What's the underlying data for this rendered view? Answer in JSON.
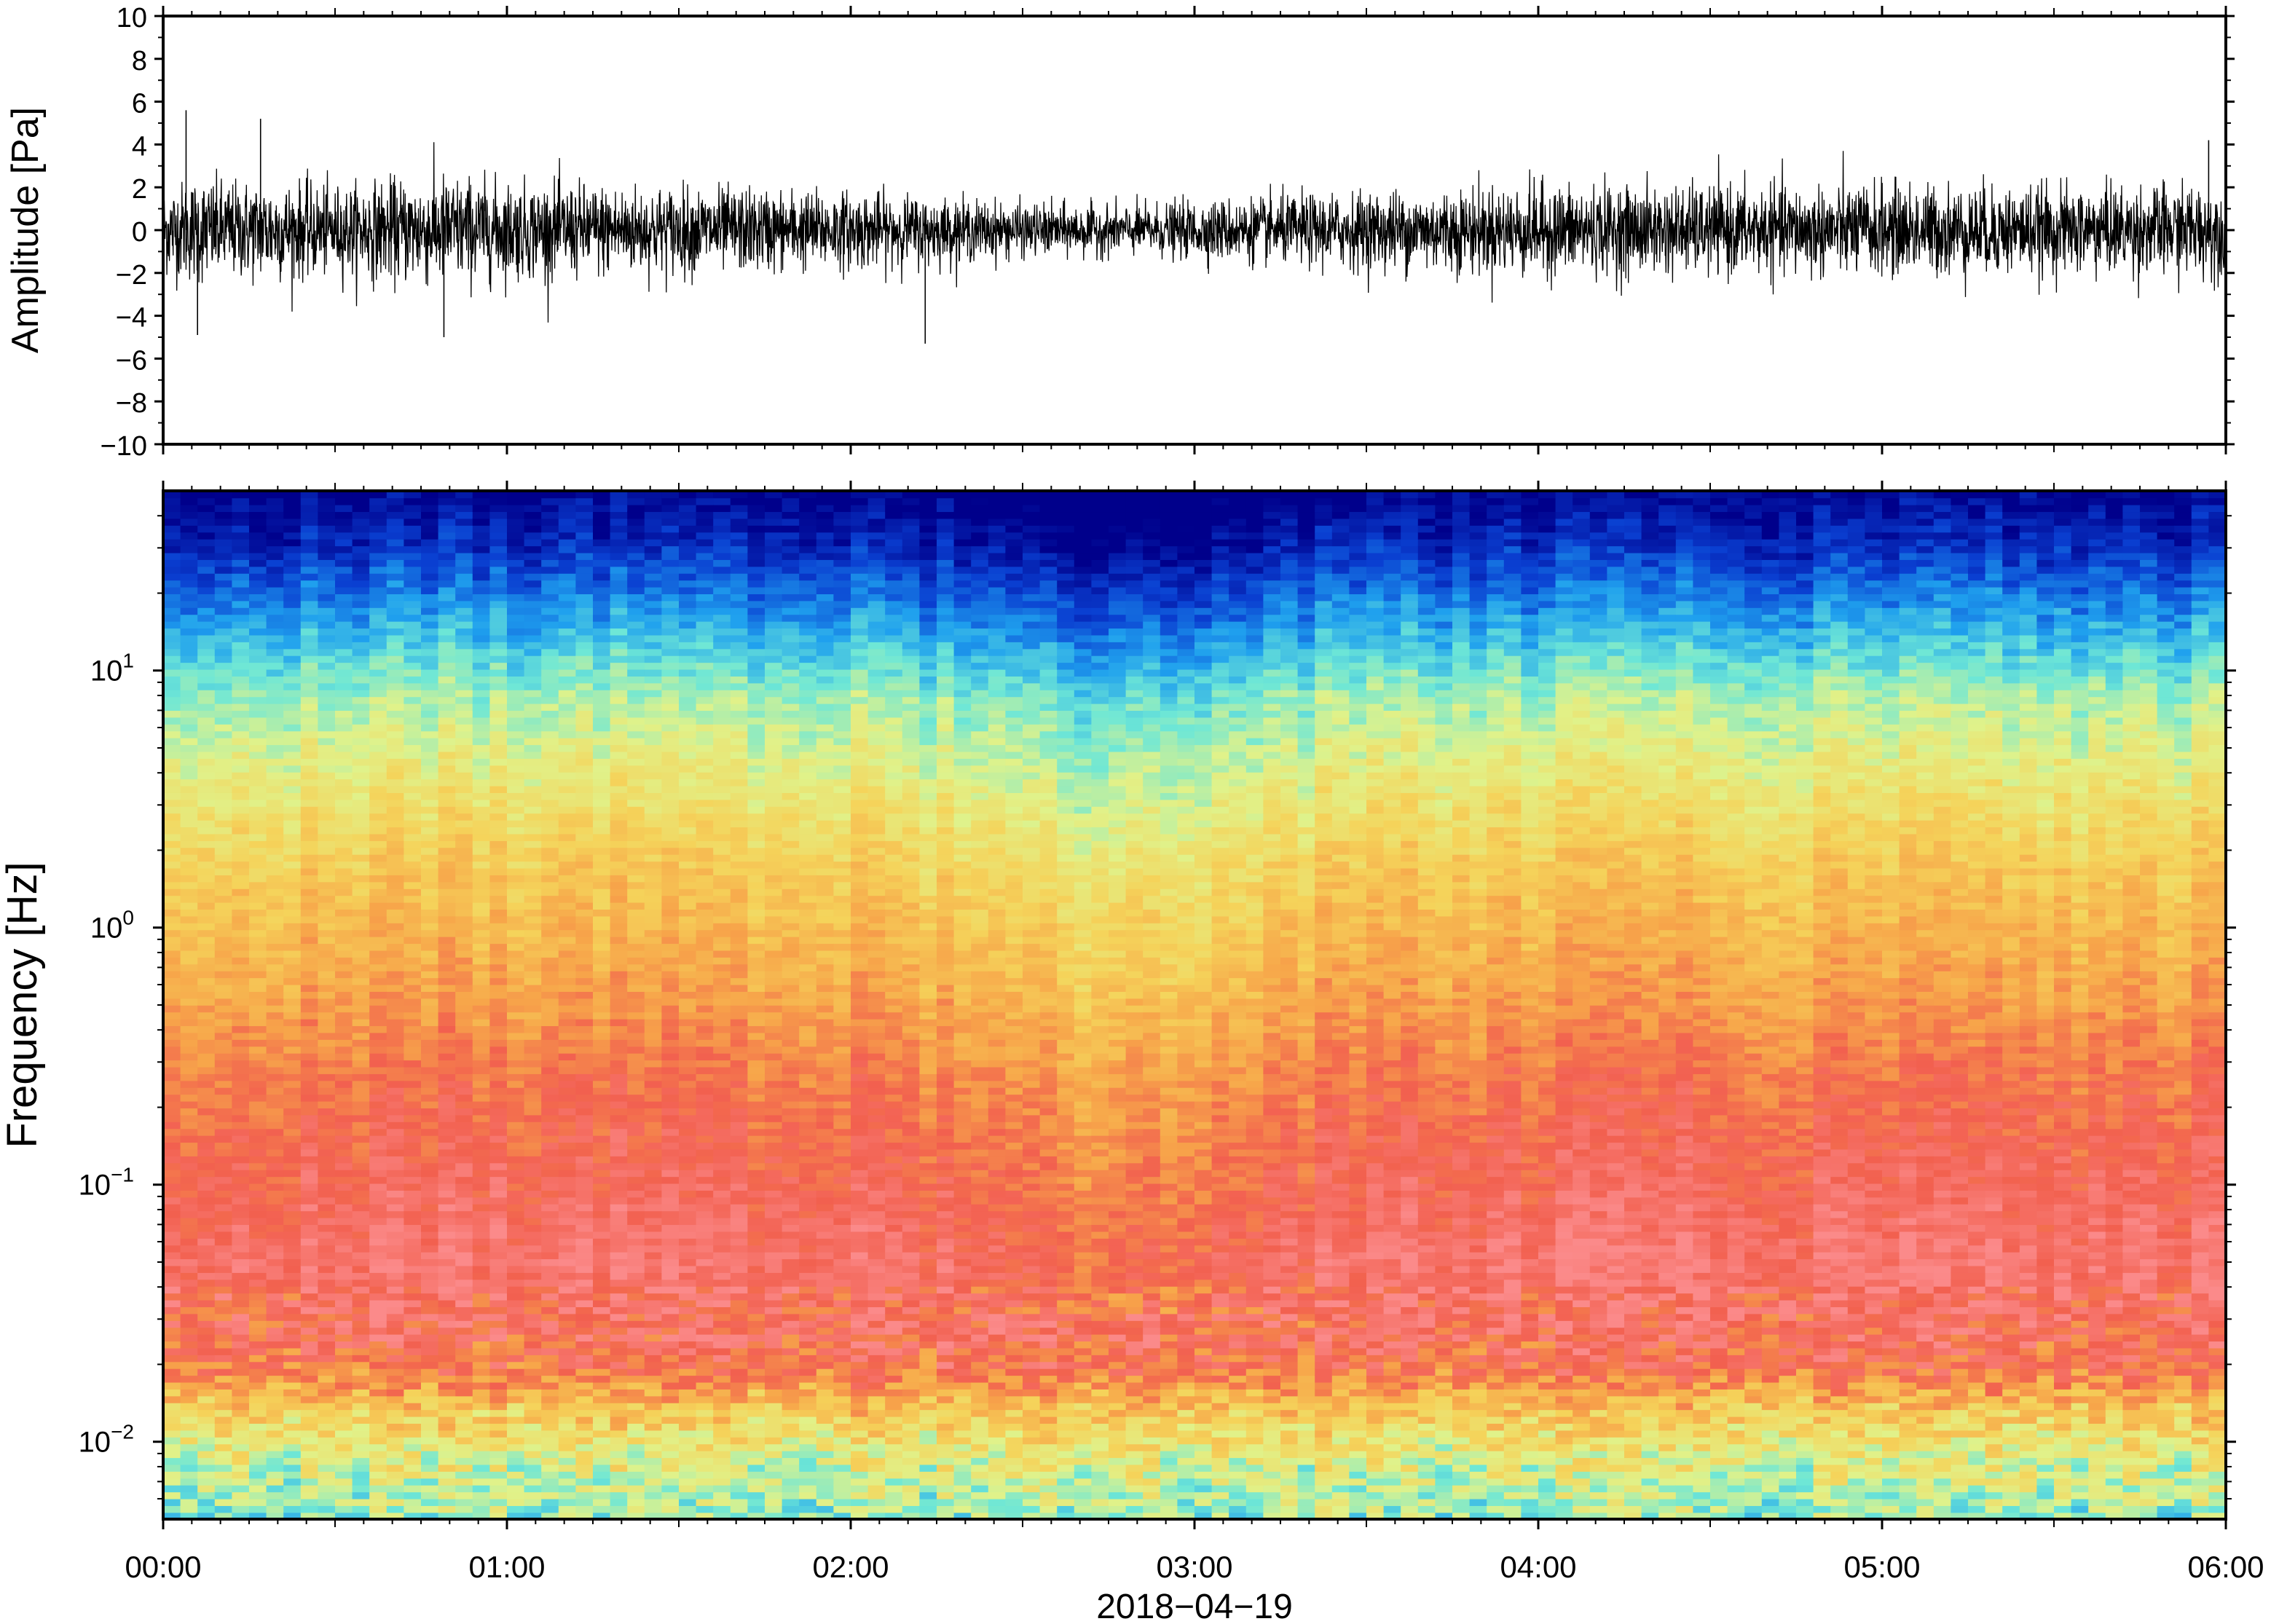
{
  "chart_data": [
    {
      "type": "line",
      "panel": "waveform",
      "title": "",
      "xlabel": "",
      "ylabel": "Amplitude [Pa]",
      "xlim": [
        "00:00",
        "06:00"
      ],
      "ylim": [
        -10,
        10
      ],
      "y_ticks": [
        10,
        8,
        6,
        4,
        2,
        0,
        -2,
        -4,
        -6,
        -8,
        -10
      ],
      "y_tick_labels": [
        "10",
        "8",
        "6",
        "4",
        "2",
        "0",
        "−2",
        "−4",
        "−6",
        "−8",
        "−10"
      ],
      "series": [
        {
          "color": "#000000",
          "envelope_time_h": [
            0.0,
            0.1,
            0.2,
            0.3,
            0.5,
            0.8,
            1.0,
            1.5,
            2.0,
            2.2,
            2.5,
            2.8,
            3.0,
            3.5,
            4.0,
            4.5,
            5.0,
            5.5,
            6.0
          ],
          "envelope_typical_amplitude": [
            1.8,
            2.2,
            2.0,
            2.1,
            1.8,
            2.3,
            2.0,
            1.8,
            1.6,
            1.4,
            1.1,
            1.0,
            1.2,
            1.6,
            1.9,
            1.8,
            1.9,
            1.8,
            1.9
          ],
          "peaks": [
            {
              "time": "00:04",
              "value": 5.6
            },
            {
              "time": "00:17",
              "value": 5.2
            },
            {
              "time": "00:06",
              "value": -4.9
            },
            {
              "time": "00:49",
              "value": -5.0
            },
            {
              "time": "02:13",
              "value": -5.3
            },
            {
              "time": "05:57",
              "value": 4.2
            }
          ]
        }
      ]
    },
    {
      "type": "heatmap",
      "panel": "spectrogram",
      "title": "",
      "xlabel": "2018−04−19",
      "ylabel": "Frequency [Hz]",
      "xlim": [
        "00:00",
        "06:00"
      ],
      "x_ticks": [
        "00:00",
        "01:00",
        "02:00",
        "03:00",
        "04:00",
        "05:00",
        "06:00"
      ],
      "y_scale": "log",
      "ylim": [
        0.005,
        50
      ],
      "y_ticks": [
        0.01,
        0.1,
        1,
        10
      ],
      "y_tick_labels": [
        {
          "base": "10",
          "exp": "−2"
        },
        {
          "base": "10",
          "exp": "−1"
        },
        {
          "base": "10",
          "exp": "0"
        },
        {
          "base": "10",
          "exp": "1"
        }
      ],
      "colormap": [
        "#00008b",
        "#0a3fd1",
        "#1fa0ee",
        "#6ee7d6",
        "#e0f28a",
        "#f5d35a",
        "#f7a54a",
        "#f2604f",
        "#fb8a8a"
      ],
      "grid": false
    }
  ]
}
